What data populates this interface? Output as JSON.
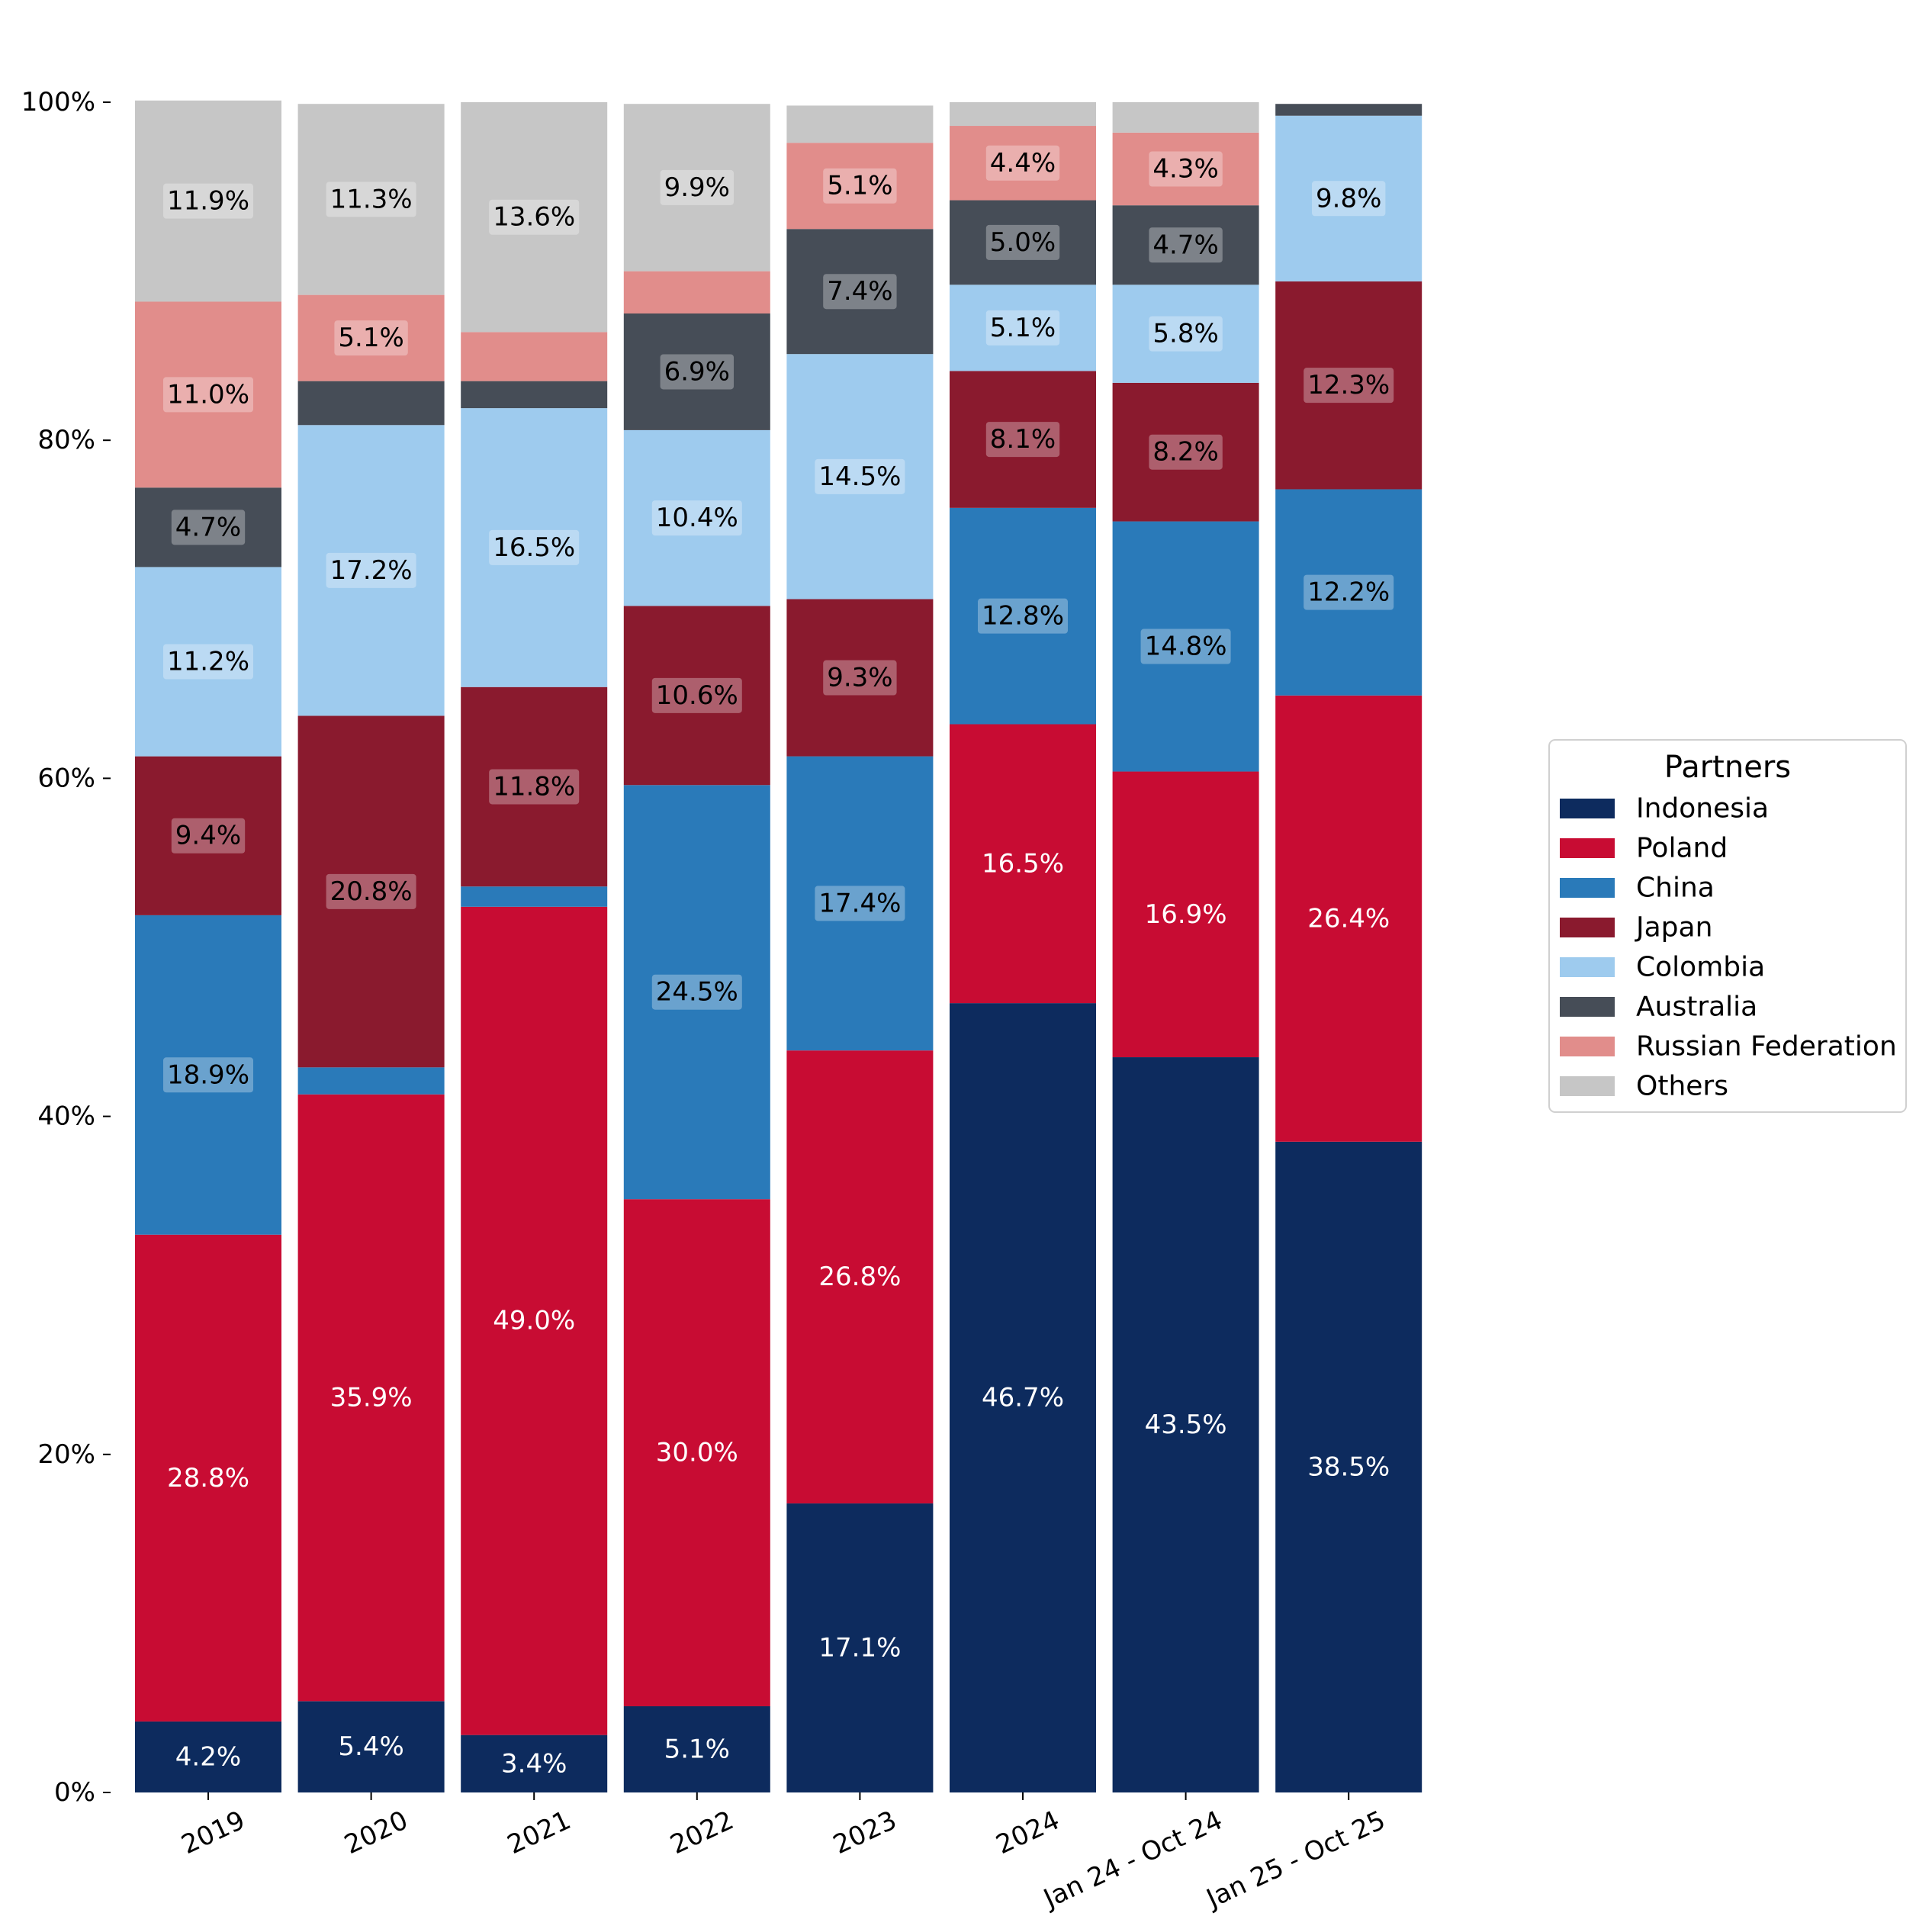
{
  "chart_data": {
    "type": "bar",
    "stacked": true,
    "categories": [
      "2019",
      "2020",
      "2021",
      "2022",
      "2023",
      "2024",
      "Jan 24 - Oct 24",
      "Jan 25 - Oct 25"
    ],
    "ylim": [
      0,
      100
    ],
    "yticks": [
      "0%",
      "20%",
      "40%",
      "60%",
      "80%",
      "100%"
    ],
    "legend": {
      "title": "Partners",
      "placement": "center-right"
    },
    "series": [
      {
        "name": "Indonesia",
        "color": "#0d2b5e",
        "label_color": "#ffffff",
        "values": [
          4.2,
          5.4,
          3.4,
          5.1,
          17.1,
          46.7,
          43.5,
          38.5
        ],
        "labels": [
          "4.2%",
          "5.4%",
          "3.4%",
          "5.1%",
          "17.1%",
          "46.7%",
          "43.5%",
          "38.5%"
        ]
      },
      {
        "name": "Poland",
        "color": "#c80c33",
        "label_color": "#ffffff",
        "values": [
          28.8,
          35.9,
          49.0,
          30.0,
          26.8,
          16.5,
          16.9,
          26.4
        ],
        "labels": [
          "28.8%",
          "35.9%",
          "49.0%",
          "30.0%",
          "26.8%",
          "16.5%",
          "16.9%",
          "26.4%"
        ]
      },
      {
        "name": "China",
        "color": "#2a7ab9",
        "label_color": "#000000",
        "values": [
          18.9,
          1.6,
          1.2,
          24.5,
          17.4,
          12.8,
          14.8,
          12.2
        ],
        "labels": [
          "18.9%",
          "",
          "",
          "24.5%",
          "17.4%",
          "12.8%",
          "14.8%",
          "12.2%"
        ]
      },
      {
        "name": "Japan",
        "color": "#8a1a2e",
        "label_color": "#000000",
        "values": [
          9.4,
          20.8,
          11.8,
          10.6,
          9.3,
          8.1,
          8.2,
          12.3
        ],
        "labels": [
          "9.4%",
          "20.8%",
          "11.8%",
          "10.6%",
          "9.3%",
          "8.1%",
          "8.2%",
          "12.3%"
        ]
      },
      {
        "name": "Colombia",
        "color": "#9ecbee",
        "label_color": "#000000",
        "values": [
          11.2,
          17.2,
          16.5,
          10.4,
          14.5,
          5.1,
          5.8,
          9.8
        ],
        "labels": [
          "11.2%",
          "17.2%",
          "16.5%",
          "10.4%",
          "14.5%",
          "5.1%",
          "5.8%",
          "9.8%"
        ]
      },
      {
        "name": "Australia",
        "color": "#464d57",
        "label_color": "#000000",
        "values": [
          4.7,
          2.6,
          1.6,
          6.9,
          7.4,
          5.0,
          4.7,
          0.7
        ],
        "labels": [
          "4.7%",
          "",
          "",
          "6.9%",
          "7.4%",
          "5.0%",
          "4.7%",
          ""
        ]
      },
      {
        "name": "Russian Federation",
        "color": "#e18d8b",
        "label_color": "#000000",
        "values": [
          11.0,
          5.1,
          2.9,
          2.5,
          5.1,
          4.4,
          4.3,
          0.0
        ],
        "labels": [
          "11.0%",
          "5.1%",
          "",
          "",
          "5.1%",
          "4.4%",
          "4.3%",
          ""
        ]
      },
      {
        "name": "Others",
        "color": "#c6c6c6",
        "label_color": "#000000",
        "values": [
          11.9,
          11.3,
          13.6,
          9.9,
          2.2,
          1.4,
          1.8,
          0.0
        ],
        "labels": [
          "11.9%",
          "11.3%",
          "13.6%",
          "9.9%",
          "",
          "",
          "",
          ""
        ]
      }
    ]
  }
}
